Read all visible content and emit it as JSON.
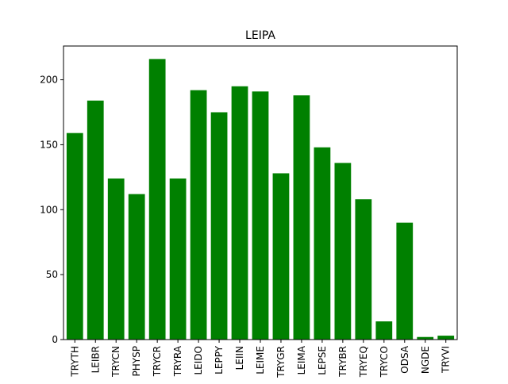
{
  "chart_data": {
    "type": "bar",
    "title": "LEIPA",
    "xlabel": "",
    "ylabel": "",
    "categories": [
      "TRYTH",
      "LEIBR",
      "TRYCN",
      "PHYSP",
      "TRYCR",
      "TRYRA",
      "LEIDO",
      "LEPPY",
      "LEIIN",
      "LEIME",
      "TRYGR",
      "LEIMA",
      "LEPSE",
      "TRYBR",
      "TRYEQ",
      "TRYCO",
      "ODSA",
      "NGDE",
      "TRYVI"
    ],
    "values": [
      159,
      184,
      124,
      112,
      216,
      124,
      192,
      175,
      195,
      191,
      128,
      188,
      148,
      136,
      108,
      14,
      90,
      2,
      3
    ],
    "ylim": [
      0,
      226
    ],
    "yticks": [
      0,
      50,
      100,
      150,
      200
    ],
    "bar_color": "#008000",
    "grid": false,
    "legend": "none"
  }
}
